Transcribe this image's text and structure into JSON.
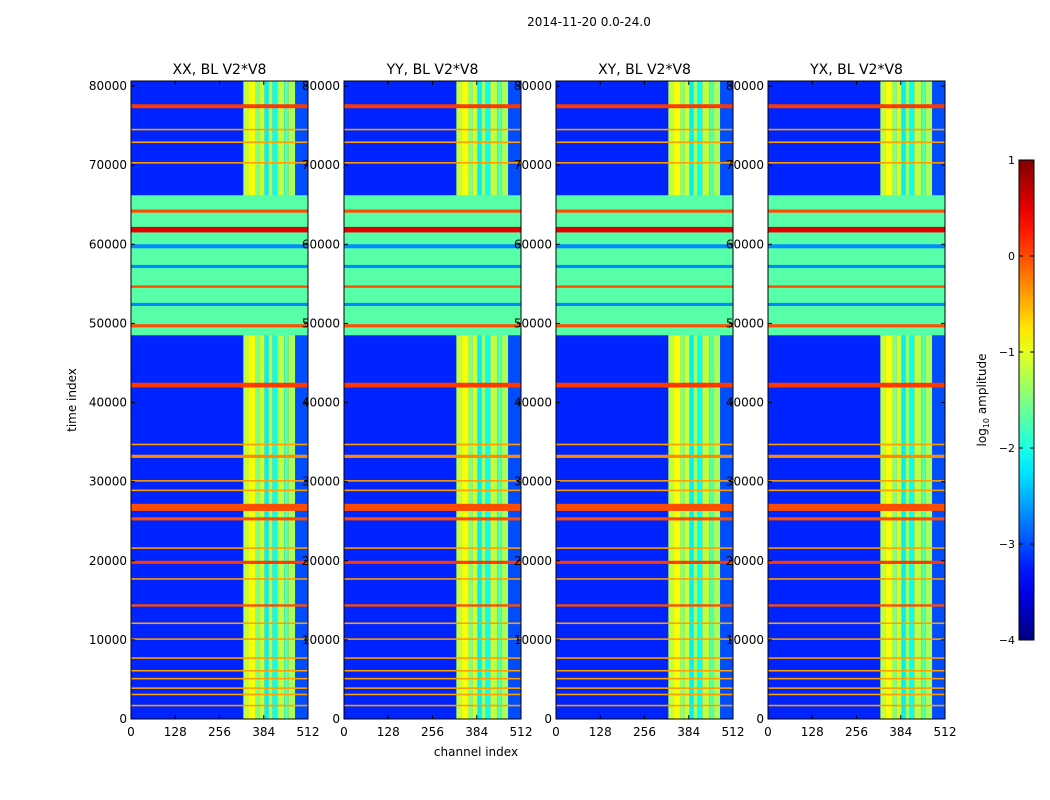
{
  "figure": {
    "suptitle": "2014-11-20 0.0-24.0"
  },
  "chart_data": {
    "type": "heatmap",
    "xlabel": "channel index",
    "ylabel": "time index",
    "xlim": [
      0,
      512
    ],
    "ylim": [
      0,
      80640
    ],
    "xticks": [
      0,
      128,
      256,
      384,
      512
    ],
    "yticks": [
      0,
      10000,
      20000,
      30000,
      40000,
      50000,
      60000,
      70000,
      80000
    ],
    "panels": [
      {
        "title": "XX, BL V2*V8"
      },
      {
        "title": "YY, BL V2*V8"
      },
      {
        "title": "XY, BL V2*V8"
      },
      {
        "title": "YX, BL V2*V8"
      }
    ],
    "colorbar": {
      "label": "log10 amplitude",
      "label_base": "log",
      "label_sub": "10",
      "label_rest": " amplitude",
      "range": [
        -4,
        1
      ],
      "ticks": [
        -4,
        -3,
        -2,
        -1,
        0,
        1
      ],
      "tick_labels": [
        "−4",
        "−3",
        "−2",
        "−1",
        "0",
        "1"
      ],
      "colormap": "jet"
    },
    "background_level": -3.2,
    "band_channels": [
      {
        "x0": 325,
        "x1": 340,
        "level": -1.2
      },
      {
        "x0": 340,
        "x1": 360,
        "level": -0.9
      },
      {
        "x0": 360,
        "x1": 372,
        "level": -1.5
      },
      {
        "x0": 372,
        "x1": 386,
        "level": -1.1
      },
      {
        "x0": 386,
        "x1": 398,
        "level": -2.2
      },
      {
        "x0": 398,
        "x1": 410,
        "level": -1.3
      },
      {
        "x0": 410,
        "x1": 423,
        "level": -2.1
      },
      {
        "x0": 423,
        "x1": 443,
        "level": -1.2
      },
      {
        "x0": 443,
        "x1": 455,
        "level": -1.7
      },
      {
        "x0": 455,
        "x1": 475,
        "level": -1.3
      },
      {
        "x0": 475,
        "x1": 512,
        "level": -3.0
      }
    ],
    "rfi_rows": [
      {
        "t0": 48500,
        "t1": 66200,
        "level": -1.7
      },
      {
        "t0": 77200,
        "t1": 77700,
        "level": 0.1
      },
      {
        "t0": 41900,
        "t1": 42500,
        "level": 0.1
      },
      {
        "t0": 19600,
        "t1": 20000,
        "level": 0.1
      },
      {
        "t0": 14200,
        "t1": 14500,
        "level": 0.0
      },
      {
        "t0": 26300,
        "t1": 27200,
        "level": 0.0
      },
      {
        "t0": 25100,
        "t1": 25500,
        "level": 0.0
      },
      {
        "t0": 33000,
        "t1": 33400,
        "level": -0.3
      },
      {
        "t0": 61500,
        "t1": 62200,
        "level": 0.5
      },
      {
        "t0": 59500,
        "t1": 60000,
        "level": -2.7
      },
      {
        "t0": 57000,
        "t1": 57400,
        "level": -2.7
      },
      {
        "t0": 52200,
        "t1": 52600,
        "level": -2.7
      },
      {
        "t0": 54500,
        "t1": 54800,
        "level": 0.0
      },
      {
        "t0": 49500,
        "t1": 49900,
        "level": 0.0
      },
      {
        "t0": 64000,
        "t1": 64400,
        "level": 0.0
      },
      {
        "t0": 74400,
        "t1": 74600,
        "level": -0.4
      },
      {
        "t0": 72800,
        "t1": 73000,
        "level": -0.4
      },
      {
        "t0": 70200,
        "t1": 70400,
        "level": -0.4
      },
      {
        "t0": 34600,
        "t1": 34800,
        "level": -0.4
      },
      {
        "t0": 30000,
        "t1": 30200,
        "level": -0.4
      },
      {
        "t0": 28800,
        "t1": 29000,
        "level": -0.4
      },
      {
        "t0": 21500,
        "t1": 21700,
        "level": -0.4
      },
      {
        "t0": 17600,
        "t1": 17800,
        "level": -0.4
      },
      {
        "t0": 12000,
        "t1": 12200,
        "level": -0.4
      },
      {
        "t0": 10000,
        "t1": 10200,
        "level": -0.4
      },
      {
        "t0": 7600,
        "t1": 7800,
        "level": -0.4
      },
      {
        "t0": 6000,
        "t1": 6200,
        "level": -0.4
      },
      {
        "t0": 5000,
        "t1": 5200,
        "level": -0.4
      },
      {
        "t0": 3800,
        "t1": 4000,
        "level": -0.4
      },
      {
        "t0": 3000,
        "t1": 3200,
        "level": -0.4
      },
      {
        "t0": 1600,
        "t1": 1800,
        "level": -0.4
      }
    ]
  }
}
